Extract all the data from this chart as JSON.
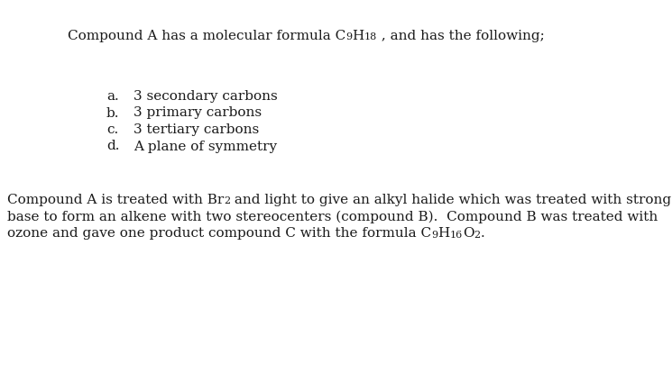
{
  "background_color": "#ffffff",
  "figsize": [
    7.45,
    4.35
  ],
  "dpi": 100,
  "line1_before": "Compound A has a molecular formula C",
  "line1_sub1": "9",
  "line1_mid": "H",
  "line1_sub2": "18",
  "line1_end": " , and has the following;",
  "list_items": [
    {
      "label": "a.",
      "text": "3 secondary carbons"
    },
    {
      "label": "b.",
      "text": "3 primary carbons"
    },
    {
      "label": "c.",
      "text": "3 tertiary carbons"
    },
    {
      "label": "d.",
      "text": "A plane of symmetry"
    }
  ],
  "para_line1_before_sub": "Compound A is treated with Br",
  "para_line1_sub": "2",
  "para_line1_after": " and light to give an alkyl halide which was treated with strong",
  "para_line2": "base to form an alkene with two stereocenters (compound B).  Compound B was treated with",
  "para_line3_before": "ozone and gave one product compound C with the formula C",
  "para_line3_sub1": "9",
  "para_line3_mid": "H",
  "para_line3_sub2": "16",
  "para_line3_mid2": "O",
  "para_line3_sub3": "2",
  "para_line3_end": ".",
  "font_size": 11.0,
  "sub_font_size": 8.0,
  "text_color": "#1a1a1a",
  "font_family": "DejaVu Serif"
}
